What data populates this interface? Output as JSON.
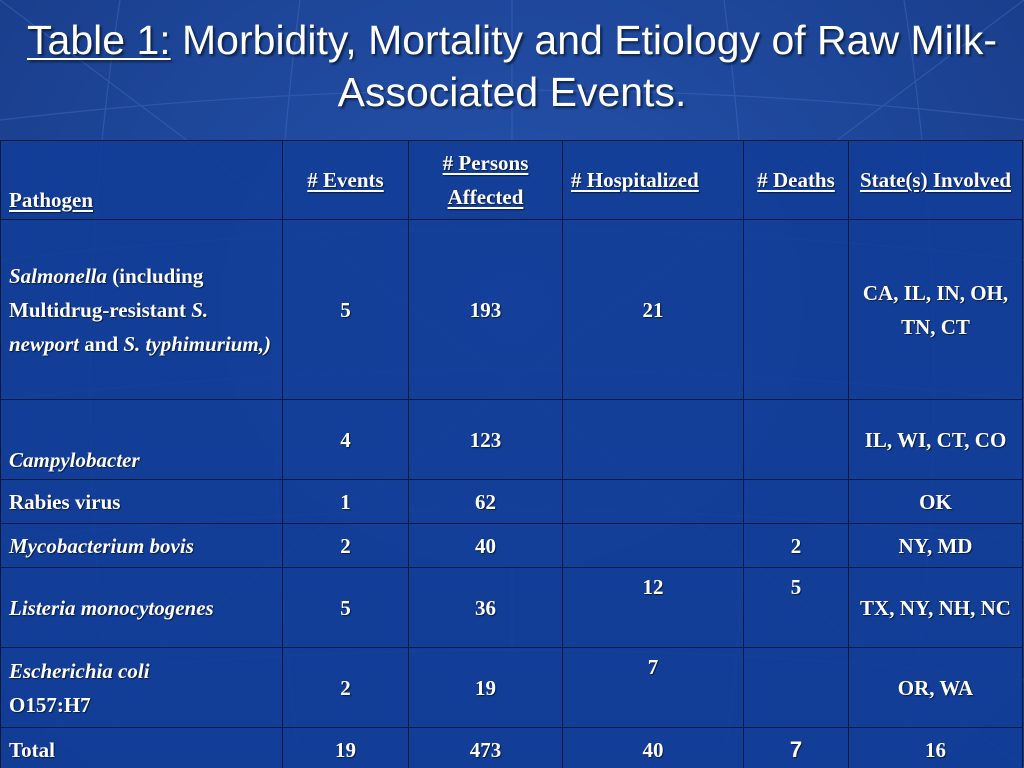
{
  "title": {
    "prefix": "Table 1:",
    "text": " Morbidity, Mortality and Etiology of Raw Milk-Associated Events."
  },
  "table": {
    "headers": {
      "pathogen": "Pathogen",
      "events": "# Events",
      "persons": "# Persons Affected",
      "hospitalized": "# Hospitalized",
      "deaths": "# Deaths",
      "states": "State(s) Involved"
    },
    "rows": [
      {
        "pathogen_parts": [
          "Salmonella",
          " (including Multidrug-resistant ",
          "S. newport",
          " and ",
          "S. typhimurium,)"
        ],
        "events": "5",
        "persons": "193",
        "hospitalized": "21",
        "deaths": "",
        "states": "CA, IL, IN, OH, TN, CT"
      },
      {
        "pathogen": "Campylobacter",
        "events": "4",
        "persons": "123",
        "hospitalized": "",
        "deaths": "",
        "states": "IL, WI, CT, CO"
      },
      {
        "pathogen": "Rabies virus",
        "events": "1",
        "persons": "62",
        "hospitalized": "",
        "deaths": "",
        "states": "OK"
      },
      {
        "pathogen": "Mycobacterium bovis",
        "events": "2",
        "persons": "40",
        "hospitalized": "",
        "deaths": "2",
        "states": "NY, MD"
      },
      {
        "pathogen": "Listeria monocytogenes",
        "events": "5",
        "persons": "36",
        "hospitalized": "12",
        "deaths": "5",
        "states": "TX, NY, NH, NC"
      },
      {
        "pathogen_parts": [
          "Escherichia coli",
          " O157:H7"
        ],
        "events": "2",
        "persons": "19",
        "hospitalized": "7",
        "deaths": "",
        "states": "OR, WA"
      },
      {
        "pathogen": "Total",
        "events": "19",
        "persons": "473",
        "hospitalized": "40",
        "deaths": "7",
        "states": "16"
      }
    ]
  },
  "colors": {
    "background": "#1f48a0",
    "text": "#ffffff",
    "grid": "#0c1a3a"
  }
}
